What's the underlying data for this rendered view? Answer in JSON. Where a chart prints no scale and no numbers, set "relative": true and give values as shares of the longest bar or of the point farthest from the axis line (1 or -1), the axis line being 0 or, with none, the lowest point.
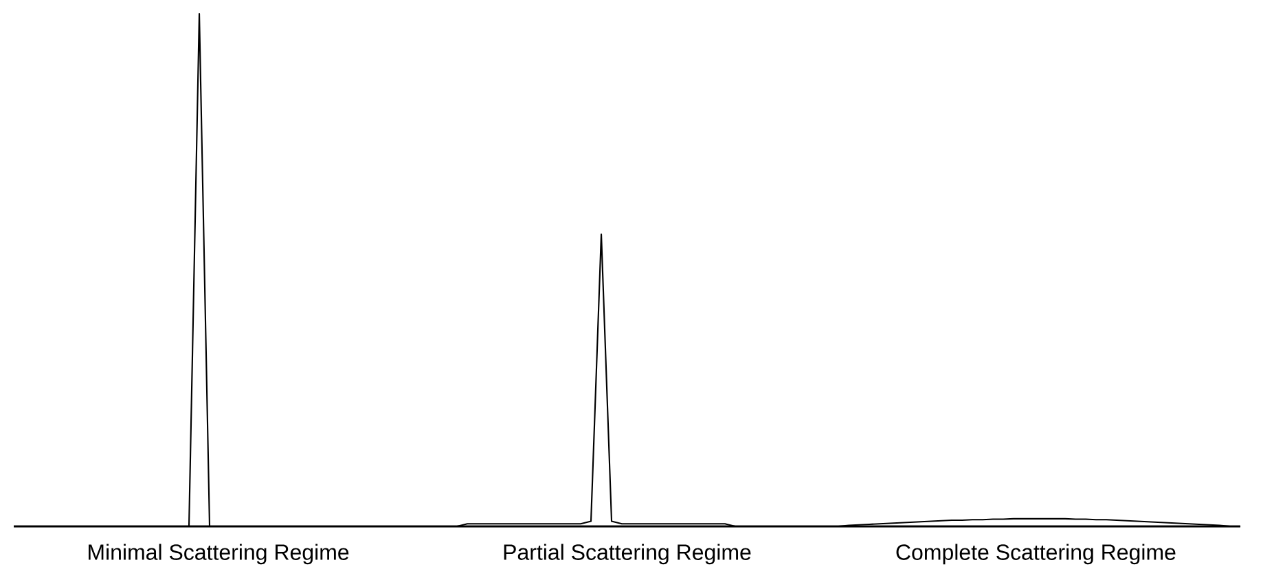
{
  "chart_data": {
    "type": "line",
    "relative": true,
    "categories": [
      null,
      null,
      null,
      null,
      null,
      null,
      null,
      null,
      null,
      null,
      null,
      null,
      null,
      null,
      null,
      null,
      null,
      null,
      null,
      null,
      null,
      null,
      null,
      null,
      null,
      null,
      null,
      null,
      null,
      null,
      null,
      null,
      null,
      null,
      null,
      null,
      null,
      null,
      null,
      null,
      null,
      null,
      null,
      null,
      null,
      null,
      null,
      null,
      null,
      null,
      null,
      null,
      null,
      null,
      null,
      null,
      null,
      null,
      null,
      null,
      null,
      null,
      null,
      null,
      null,
      null,
      null,
      null,
      null,
      null,
      null,
      null,
      null,
      null,
      null,
      null,
      null,
      null,
      null,
      null,
      null,
      null,
      null,
      null,
      null,
      null,
      null,
      null,
      null,
      null,
      null,
      null,
      null,
      null,
      null,
      null,
      null,
      null,
      null,
      null,
      null,
      null,
      null,
      null,
      null,
      null,
      null,
      null,
      null,
      null,
      null,
      null,
      null,
      null,
      null,
      null,
      null,
      null,
      null,
      null
    ],
    "series": [
      {
        "color": "#000000",
        "values": [
          0,
          0,
          0,
          0,
          0,
          0,
          0,
          0,
          0,
          0,
          0,
          0,
          0,
          0,
          0,
          0,
          0,
          0,
          1,
          0,
          0,
          0,
          0,
          0,
          0,
          0,
          0,
          0,
          0,
          0,
          0,
          0,
          0,
          0,
          0,
          0,
          0,
          0,
          0,
          0,
          0,
          0,
          0,
          0,
          0.005,
          0.005,
          0.005,
          0.005,
          0.005,
          0.005,
          0.005,
          0.005,
          0.005,
          0.005,
          0.005,
          0.005,
          0.01,
          0.57,
          0.01,
          0.005,
          0.005,
          0.005,
          0.005,
          0.005,
          0.005,
          0.005,
          0.005,
          0.005,
          0.005,
          0.005,
          0,
          0,
          0,
          0,
          0,
          0,
          0,
          0,
          0,
          0,
          0,
          0.002,
          0.003,
          0.004,
          0.005,
          0.006,
          0.007,
          0.008,
          0.009,
          0.01,
          0.011,
          0.012,
          0.012,
          0.013,
          0.013,
          0.014,
          0.014,
          0.015,
          0.015,
          0.015,
          0.015,
          0.015,
          0.015,
          0.014,
          0.014,
          0.013,
          0.013,
          0.012,
          0.011,
          0.01,
          0.009,
          0.008,
          0.007,
          0.006,
          0.005,
          0.004,
          0.003,
          0.002,
          0,
          0
        ]
      }
    ],
    "annotations": [
      "Minimal Scattering Regime",
      "Partial Scattering Regime",
      "Complete Scattering Regime"
    ]
  }
}
